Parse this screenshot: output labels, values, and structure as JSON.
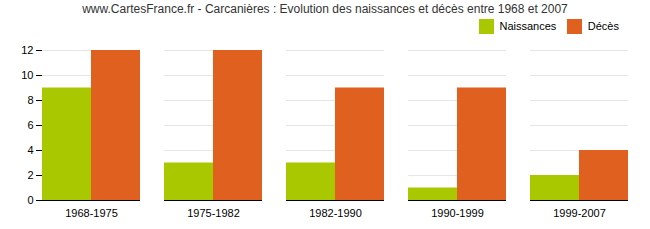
{
  "chart_data": {
    "type": "bar",
    "title": "www.CartesFrance.fr - Carcanières : Evolution des naissances et décès entre 1968 et 2007",
    "categories": [
      "1968-1975",
      "1975-1982",
      "1982-1990",
      "1990-1999",
      "1999-2007"
    ],
    "series": [
      {
        "name": "Naissances",
        "color": "#aac800",
        "values": [
          9,
          3,
          3,
          1,
          2
        ]
      },
      {
        "name": "Décès",
        "color": "#e06020",
        "values": [
          12,
          12,
          9,
          9,
          4
        ]
      }
    ],
    "ylim": [
      0,
      12
    ],
    "yticks": [
      0,
      2,
      4,
      6,
      8,
      10,
      12
    ],
    "grid": true,
    "legend": "upper right"
  }
}
